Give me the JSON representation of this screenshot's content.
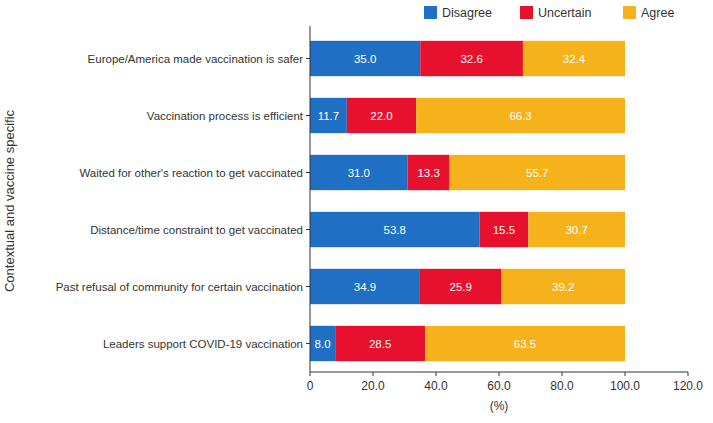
{
  "chart_data": {
    "type": "bar",
    "orientation": "horizontal",
    "stacked": true,
    "data_labels": true,
    "grid": false,
    "legend": "top right",
    "y_label": "Contextual and vaccine specific",
    "x_label": "(%)",
    "categories": [
      "Europe/America made vaccination is safer",
      "Vaccination process is efficient",
      "Waited for other's reaction to get vaccinated",
      "Distance/time constraint to get vaccinated",
      "Past refusal of community for certain vaccination",
      "Leaders support COVID-19 vaccination"
    ],
    "series": [
      {
        "name": "Disagree",
        "color": "#1f6fc5",
        "values": [
          35.0,
          11.7,
          31.0,
          53.8,
          34.9,
          8.0
        ],
        "value_labels": [
          "35.0",
          "11.7",
          "31.0",
          "53.8",
          "34.9",
          "8.0"
        ]
      },
      {
        "name": "Uncertain",
        "color": "#e8112d",
        "values": [
          32.6,
          22.0,
          13.3,
          15.5,
          25.9,
          28.5
        ],
        "value_labels": [
          "32.6",
          "22.0",
          "13.3",
          "15.5",
          "25.9",
          "28.5"
        ]
      },
      {
        "name": "Agree",
        "color": "#f6b21b",
        "values": [
          32.4,
          66.3,
          55.7,
          30.7,
          39.2,
          63.5
        ],
        "value_labels": [
          "32.4",
          "66.3",
          "55.7",
          "30.7",
          "39.2",
          "63.5"
        ]
      }
    ],
    "xlim": [
      0,
      120
    ],
    "xticks": [
      0,
      {
        "value": 20,
        "label": "20.0"
      },
      {
        "value": 40,
        "label": "40.0"
      },
      {
        "value": 60,
        "label": "60.0"
      },
      {
        "value": 80,
        "label": "80.0"
      },
      {
        "value": 100,
        "label": "100.0"
      },
      {
        "value": 120,
        "label": "120.0"
      }
    ]
  }
}
